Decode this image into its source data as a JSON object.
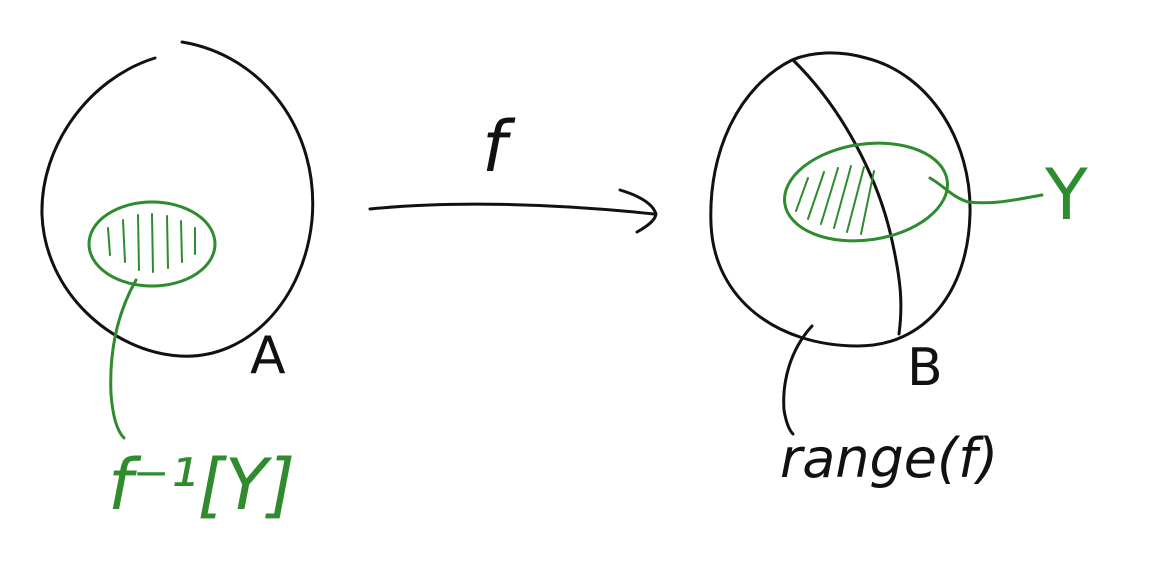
{
  "colors": {
    "ink": "#111111",
    "highlight": "#2e8b2e"
  },
  "labels": {
    "map": "f",
    "domain": "A",
    "codomain": "B",
    "subset": "Y",
    "preimage": "f⁻¹[Y]",
    "range": "range(f)"
  }
}
